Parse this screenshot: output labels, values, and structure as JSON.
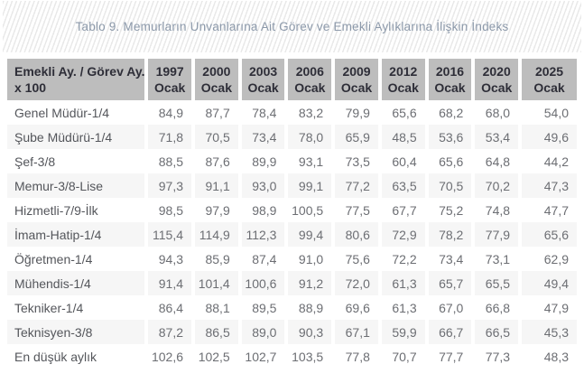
{
  "title": "Tablo 9. Memurların Unvanlarına Ait Görev ve Emekli Aylıklarına İlişkin İndeks",
  "colors": {
    "header_bg": "#bdbdbd",
    "header_text": "#2e2e38",
    "title_text": "#8c99aa",
    "label_text": "#54565b",
    "number_text": "#6c6e73",
    "shaded_row_bg": "#f6f6f6",
    "stripe_color": "#e9e9e9"
  },
  "table": {
    "corner_header": {
      "line1": "Emekli Ay. / Görev Ay.",
      "line2": "x 100"
    },
    "year_columns": [
      {
        "year": "1997",
        "month": "Ocak"
      },
      {
        "year": "2000",
        "month": "Ocak"
      },
      {
        "year": "2003",
        "month": "Ocak"
      },
      {
        "year": "2006",
        "month": "Ocak"
      },
      {
        "year": "2009",
        "month": "Ocak"
      },
      {
        "year": "2012",
        "month": "Ocak"
      },
      {
        "year": "2016",
        "month": "Ocak"
      },
      {
        "year": "2020",
        "month": "Ocak"
      },
      {
        "year": "2025",
        "month": "Ocak"
      }
    ],
    "rows": [
      {
        "label": "Genel Müdür-1/4",
        "values": [
          "84,9",
          "87,7",
          "78,4",
          "83,2",
          "79,9",
          "65,6",
          "68,2",
          "68,0",
          "54,0"
        ]
      },
      {
        "label": "Şube Müdürü-1/4",
        "values": [
          "71,8",
          "70,5",
          "73,4",
          "78,0",
          "65,9",
          "48,5",
          "53,6",
          "53,4",
          "49,6"
        ]
      },
      {
        "label": "Şef-3/8",
        "values": [
          "88,5",
          "87,6",
          "89,9",
          "93,1",
          "73,5",
          "60,4",
          "65,6",
          "64,8",
          "44,2"
        ]
      },
      {
        "label": "Memur-3/8-Lise",
        "values": [
          "97,3",
          "91,1",
          "93,0",
          "99,1",
          "77,2",
          "63,5",
          "70,5",
          "70,2",
          "47,3"
        ]
      },
      {
        "label": "Hizmetli-7/9-İlk",
        "values": [
          "98,5",
          "97,9",
          "98,9",
          "100,5",
          "77,5",
          "67,7",
          "75,2",
          "74,8",
          "47,7"
        ]
      },
      {
        "label": "İmam-Hatip-1/4",
        "values": [
          "115,4",
          "114,9",
          "112,3",
          "99,4",
          "80,6",
          "72,9",
          "78,2",
          "77,9",
          "65,6"
        ]
      },
      {
        "label": "Öğretmen-1/4",
        "values": [
          "94,3",
          "85,9",
          "87,4",
          "91,0",
          "75,6",
          "72,2",
          "73,4",
          "73,1",
          "62,9"
        ]
      },
      {
        "label": "Mühendis-1/4",
        "values": [
          "91,4",
          "101,4",
          "100,6",
          "91,2",
          "72,0",
          "61,3",
          "65,7",
          "65,5",
          "49,4"
        ]
      },
      {
        "label": "Tekniker-1/4",
        "values": [
          "86,4",
          "88,1",
          "89,5",
          "88,9",
          "69,6",
          "61,3",
          "67,0",
          "66,8",
          "47,9"
        ]
      },
      {
        "label": "Teknisyen-3/8",
        "values": [
          "87,2",
          "86,5",
          "89,0",
          "90,3",
          "67,1",
          "59,9",
          "66,7",
          "66,5",
          "45,3"
        ]
      },
      {
        "label": "En düşük aylık",
        "values": [
          "102,6",
          "102,5",
          "102,7",
          "103,5",
          "77,8",
          "70,7",
          "77,7",
          "77,3",
          "48,3"
        ]
      }
    ]
  }
}
